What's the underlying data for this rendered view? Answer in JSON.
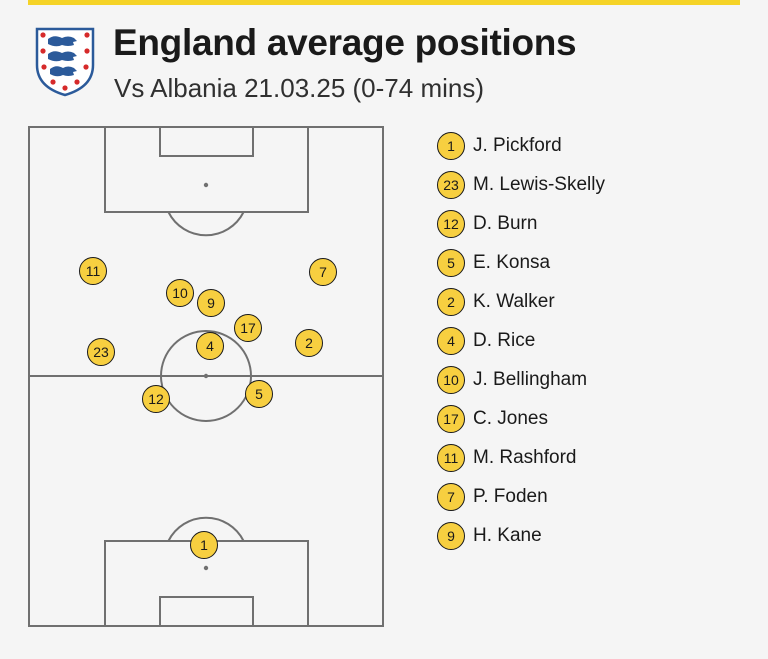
{
  "header": {
    "title": "England average positions",
    "subtitle": "Vs Albania 21.03.25 (0-74 mins)"
  },
  "colors": {
    "accent_bar": "#f5d327",
    "marker_fill": "#f7cf40",
    "marker_border": "#1a1a1a",
    "pitch_line": "#707070",
    "background": "#f5f5f5",
    "crest_red": "#d62a2a",
    "crest_blue": "#2b5a9a"
  },
  "crest": {
    "icon": "three-lions-crest-icon"
  },
  "players": [
    {
      "number": "1",
      "name": "J. Pickford"
    },
    {
      "number": "23",
      "name": "M. Lewis-Skelly"
    },
    {
      "number": "12",
      "name": "D. Burn"
    },
    {
      "number": "5",
      "name": "E. Konsa"
    },
    {
      "number": "2",
      "name": "K. Walker"
    },
    {
      "number": "4",
      "name": "D. Rice"
    },
    {
      "number": "10",
      "name": "J. Bellingham"
    },
    {
      "number": "17",
      "name": "C. Jones"
    },
    {
      "number": "11",
      "name": "M. Rashford"
    },
    {
      "number": "7",
      "name": "P. Foden"
    },
    {
      "number": "9",
      "name": "H. Kane"
    }
  ]
}
